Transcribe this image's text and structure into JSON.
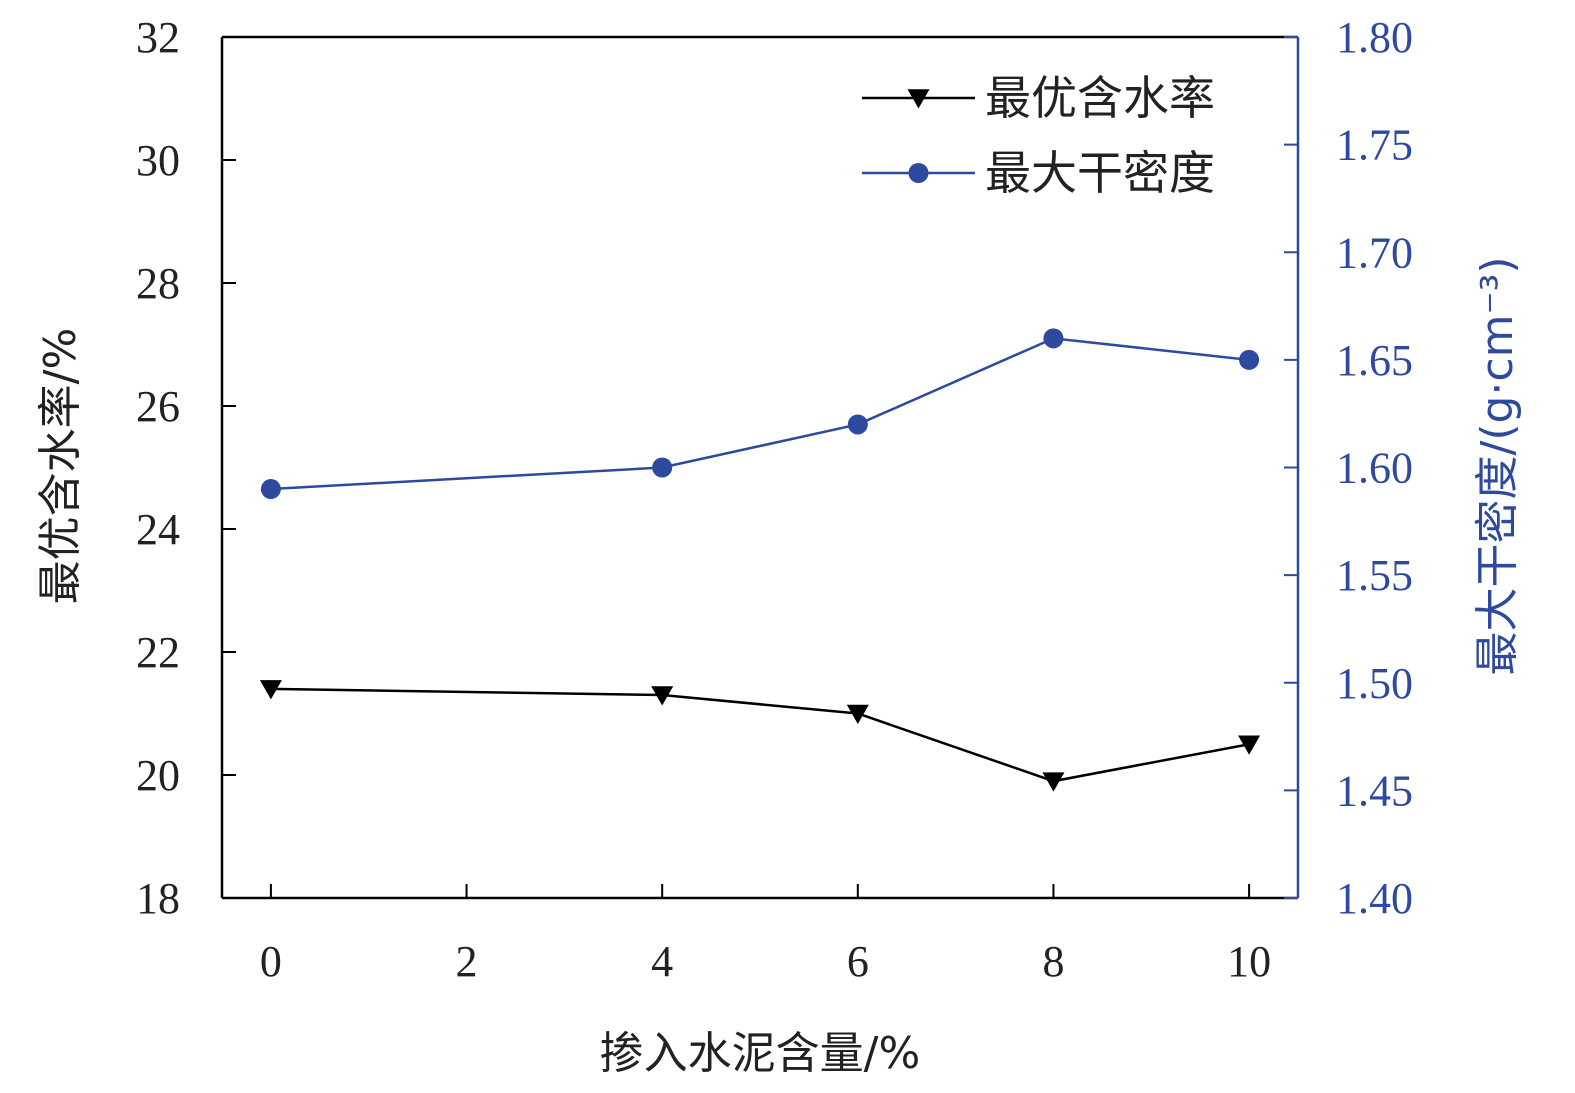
{
  "chart_data": {
    "type": "line",
    "x": [
      0,
      4,
      6,
      8,
      10
    ],
    "xlabel": "掺入水泥含量/%",
    "xlim": [
      -0.5,
      10.5
    ],
    "xticks": [
      "0",
      "2",
      "4",
      "6",
      "8",
      "10"
    ],
    "y_left": {
      "label": "最优含水率/%",
      "lim": [
        18,
        32
      ],
      "ticks": [
        "18",
        "20",
        "22",
        "24",
        "26",
        "28",
        "30",
        "32"
      ]
    },
    "y_right": {
      "label": "最大干密度/(g·cm⁻³)",
      "lim": [
        1.4,
        1.8
      ],
      "ticks": [
        "1.40",
        "1.45",
        "1.50",
        "1.55",
        "1.60",
        "1.65",
        "1.70",
        "1.75",
        "1.80"
      ]
    },
    "series": [
      {
        "name": "最优含水率",
        "axis": "left",
        "marker": "triangle-down",
        "color": "#000000",
        "values": [
          21.4,
          21.3,
          21.0,
          19.9,
          20.5
        ]
      },
      {
        "name": "最大干密度",
        "axis": "right",
        "marker": "circle",
        "color": "#2e4a9e",
        "values": [
          1.59,
          1.6,
          1.62,
          1.66,
          1.65
        ]
      }
    ],
    "legend_position": "top-right",
    "grid": false
  }
}
